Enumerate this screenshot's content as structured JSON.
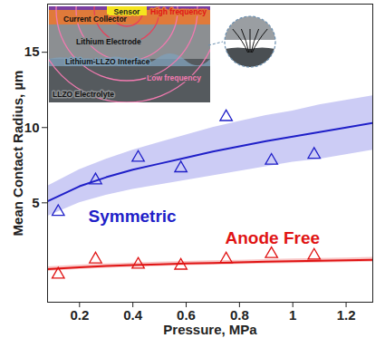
{
  "chart_data": {
    "type": "scatter",
    "xlabel": "Pressure, MPa",
    "ylabel": "Mean Contact Radius, µm",
    "x": [
      0.12,
      0.26,
      0.42,
      0.58,
      0.75,
      0.92,
      1.08
    ],
    "xlim": [
      0.08,
      1.3
    ],
    "xticks": [
      0.2,
      0.4,
      0.6,
      0.8,
      1,
      1.2
    ],
    "ylim": [
      -1.6,
      18.2
    ],
    "yticks": [
      5,
      10,
      15
    ],
    "grid": false,
    "marker": "triangle",
    "line_style": "solid",
    "fit_x": [
      0.08,
      0.2,
      0.3,
      0.4,
      0.5,
      0.6,
      0.7,
      0.8,
      0.9,
      1.0,
      1.1,
      1.2,
      1.3
    ],
    "series": [
      {
        "name": "Symmetric",
        "color": "#1f1fc8",
        "band_color": "#8f8fe8",
        "values": [
          4.4,
          6.5,
          8.0,
          7.3,
          10.7,
          7.8,
          8.2
        ],
        "fit": [
          5.1,
          6.1,
          6.7,
          7.2,
          7.6,
          8.0,
          8.4,
          8.75,
          9.1,
          9.4,
          9.7,
          10.0,
          10.3
        ],
        "band_lower": [
          4.1,
          5.0,
          5.5,
          5.9,
          6.2,
          6.5,
          6.8,
          7.1,
          7.4,
          7.7,
          7.9,
          8.2,
          8.5
        ],
        "band_upper": [
          6.1,
          7.2,
          7.9,
          8.5,
          9.0,
          9.5,
          10.0,
          10.4,
          10.8,
          11.1,
          11.5,
          11.8,
          12.1
        ]
      },
      {
        "name": "Anode Free",
        "color": "#e01414",
        "band_color": "#f08080",
        "values": [
          0.24,
          1.25,
          0.9,
          0.83,
          1.25,
          1.6,
          1.5
        ],
        "fit": [
          0.6,
          0.72,
          0.8,
          0.86,
          0.92,
          0.97,
          1.01,
          1.05,
          1.09,
          1.13,
          1.16,
          1.19,
          1.22
        ],
        "band_lower": [
          0.45,
          0.58,
          0.66,
          0.72,
          0.78,
          0.83,
          0.87,
          0.91,
          0.95,
          0.98,
          1.01,
          1.04,
          1.06
        ],
        "band_upper": [
          0.75,
          0.86,
          0.94,
          1.0,
          1.06,
          1.11,
          1.15,
          1.19,
          1.23,
          1.28,
          1.31,
          1.34,
          1.38
        ]
      }
    ],
    "annotations": [
      "Sensor",
      "High frequency",
      "Current Collector",
      "Lithium Electrode",
      "Lithium-LLZO Interface",
      "Low frequency",
      "LLZO Electrolyte"
    ]
  }
}
